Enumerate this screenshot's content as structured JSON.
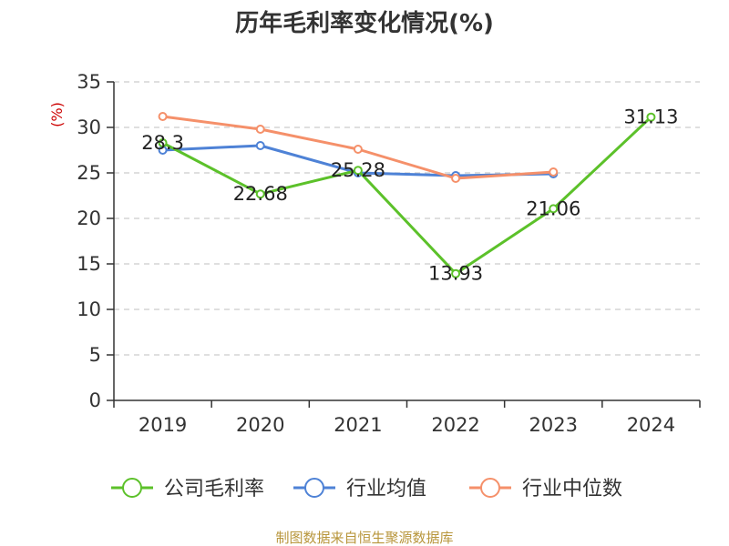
{
  "chart_data": {
    "type": "line",
    "title": "历年毛利率变化情况(%)",
    "ylabel": "(%)",
    "xlabel": "",
    "categories": [
      "2019",
      "2020",
      "2021",
      "2022",
      "2023",
      "2024"
    ],
    "ylim": [
      0,
      35
    ],
    "yticks": [
      0,
      5,
      10,
      15,
      20,
      25,
      30,
      35
    ],
    "grid": true,
    "legend_position": "bottom",
    "series": [
      {
        "name": "公司毛利率",
        "color": "#5cc12a",
        "values": [
          28.3,
          22.68,
          25.28,
          13.93,
          21.06,
          31.13
        ],
        "labels": [
          "28.3",
          "22.68",
          "25.28",
          "13.93",
          "21.06",
          "31.13"
        ]
      },
      {
        "name": "行业均值",
        "color": "#4e82d6",
        "values": [
          27.5,
          28.0,
          25.0,
          24.7,
          24.9,
          null
        ]
      },
      {
        "name": "行业中位数",
        "color": "#f5906a",
        "values": [
          31.2,
          29.8,
          27.6,
          24.4,
          25.1,
          null
        ]
      }
    ],
    "source": "制图数据来自恒生聚源数据库",
    "ylabel_color": "#cc0000",
    "source_color": "#b8963c"
  }
}
